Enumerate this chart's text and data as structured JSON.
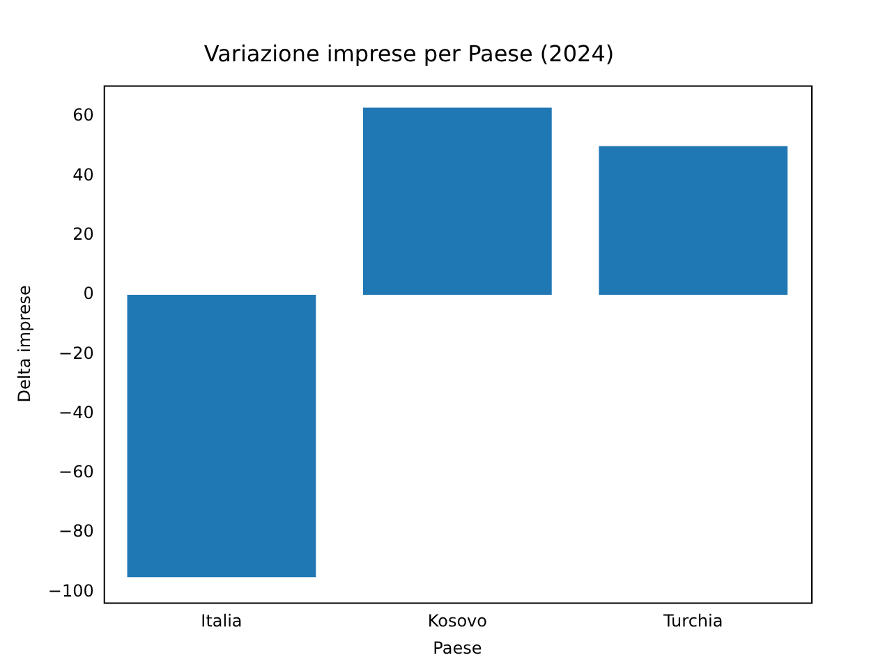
{
  "chart_data": {
    "type": "bar",
    "title": "Variazione imprese per Paese (2024)",
    "xlabel": "Paese",
    "ylabel": "Delta imprese",
    "categories": [
      "Italia",
      "Kosovo",
      "Turchia"
    ],
    "values": [
      -95,
      63,
      50
    ],
    "color": "#1f77b4",
    "ylim": [
      -103.5,
      70.5
    ],
    "yticks": [
      -100,
      -80,
      -60,
      -40,
      -20,
      0,
      20,
      40,
      60
    ],
    "grid": false,
    "legend": false
  }
}
